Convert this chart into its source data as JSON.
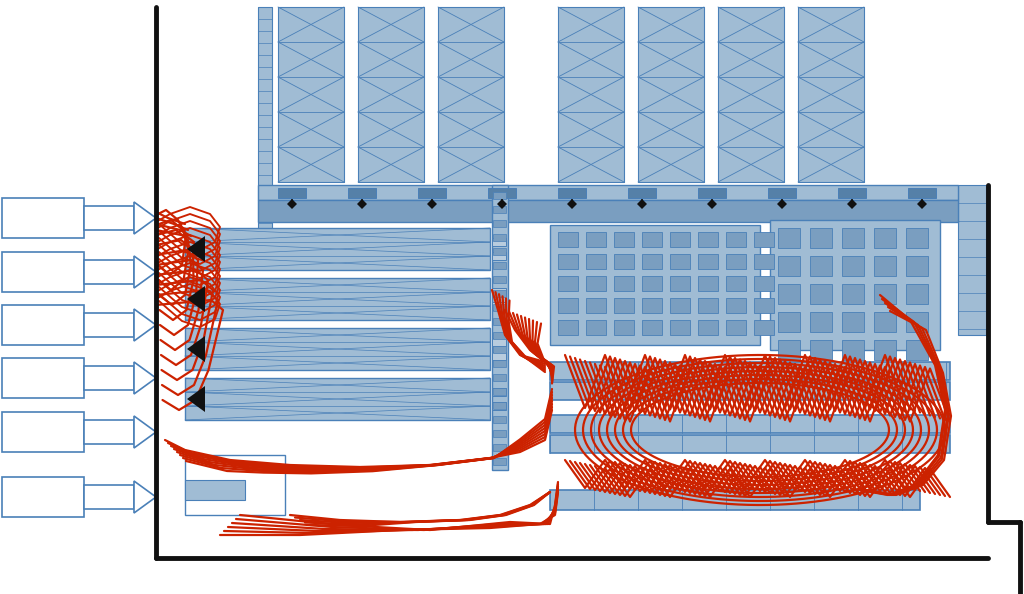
{
  "bg_color": "#ffffff",
  "wall_color": "#111111",
  "blue_light": "#b8ccde",
  "blue_mid": "#7a9ec0",
  "blue_dark": "#5580a8",
  "blue_line": "#4a80b8",
  "blue_fill": "#a0bcd4",
  "red_line": "#cc2200",
  "fig_width": 10.24,
  "fig_height": 5.94
}
